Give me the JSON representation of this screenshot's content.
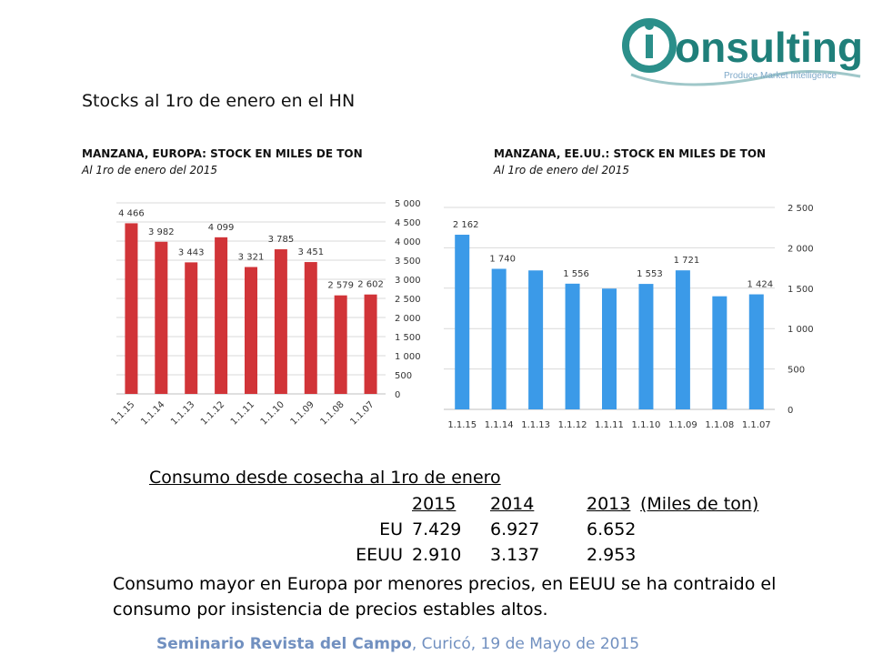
{
  "logo": {
    "text": "onsulting",
    "subtitle": "Produce Market Intelligence",
    "color_text": "#1f7f7a",
    "color_ring": "#2b8f8a"
  },
  "slide_title": "Stocks al 1ro de enero en el HN",
  "chart_data": [
    {
      "type": "bar",
      "title": "MANZANA, EUROPA: STOCK EN MILES DE TON",
      "subtitle": "Al 1ro de enero del 2015",
      "categories": [
        "1.1.15",
        "1.1.14",
        "1.1.13",
        "1.1.12",
        "1.1.11",
        "1.1.10",
        "1.1.09",
        "1.1.08",
        "1.1.07"
      ],
      "values": [
        4466,
        3982,
        3443,
        4099,
        3321,
        3785,
        3451,
        2579,
        2602
      ],
      "data_labels": [
        "4 466",
        "3 982",
        "3 443",
        "4 099",
        "3 321",
        "3 785",
        "3 451",
        "2 579",
        "2 602"
      ],
      "y_ticks": [
        "0",
        "500",
        "1 000",
        "1 500",
        "2 000",
        "2 500",
        "3 000",
        "3 500",
        "4 000",
        "4 500",
        "5 000"
      ],
      "ylim": [
        0,
        5000
      ],
      "y_axis_side": "right",
      "x_tick_rotation": "diagonal",
      "grid": true,
      "color": "#d13438"
    },
    {
      "type": "bar",
      "title": "MANZANA, EE.UU.: STOCK EN MILES DE TON",
      "subtitle": "Al 1ro de enero del 2015",
      "categories": [
        "1.1.15",
        "1.1.14",
        "1.1.13",
        "1.1.12",
        "1.1.11",
        "1.1.10",
        "1.1.09",
        "1.1.08",
        "1.1.07"
      ],
      "values": [
        2162,
        1740,
        1720,
        1556,
        1495,
        1553,
        1721,
        1400,
        1424
      ],
      "data_labels": [
        "2 162",
        "1 740",
        "",
        "1 556",
        "",
        "1 553",
        "1 721",
        "",
        "1 424"
      ],
      "y_ticks": [
        "0",
        "500",
        "1 000",
        "1 500",
        "2 000",
        "2 500"
      ],
      "ylim": [
        0,
        2500
      ],
      "y_axis_side": "right",
      "x_tick_rotation": "horizontal",
      "grid": true,
      "color": "#3b9ae8"
    }
  ],
  "consumption": {
    "title": "Consumo desde cosecha al 1ro de enero",
    "header": [
      "2015",
      "2014",
      "2013",
      "(Miles de ton)"
    ],
    "rows": [
      {
        "label": "EU",
        "values": [
          "7.429",
          "6.927",
          "6.652"
        ]
      },
      {
        "label": "EEUU",
        "values": [
          "2.910",
          "3.137",
          "2.953"
        ]
      }
    ],
    "note": "Consumo mayor en Europa por menores precios, en EEUU  se ha contraido el consumo por insistencia de precios estables altos."
  },
  "footer": {
    "bold": "Seminario Revista del Campo",
    "rest": ", Curicó, 19 de Mayo de 2015",
    "color": "#7190c0"
  }
}
